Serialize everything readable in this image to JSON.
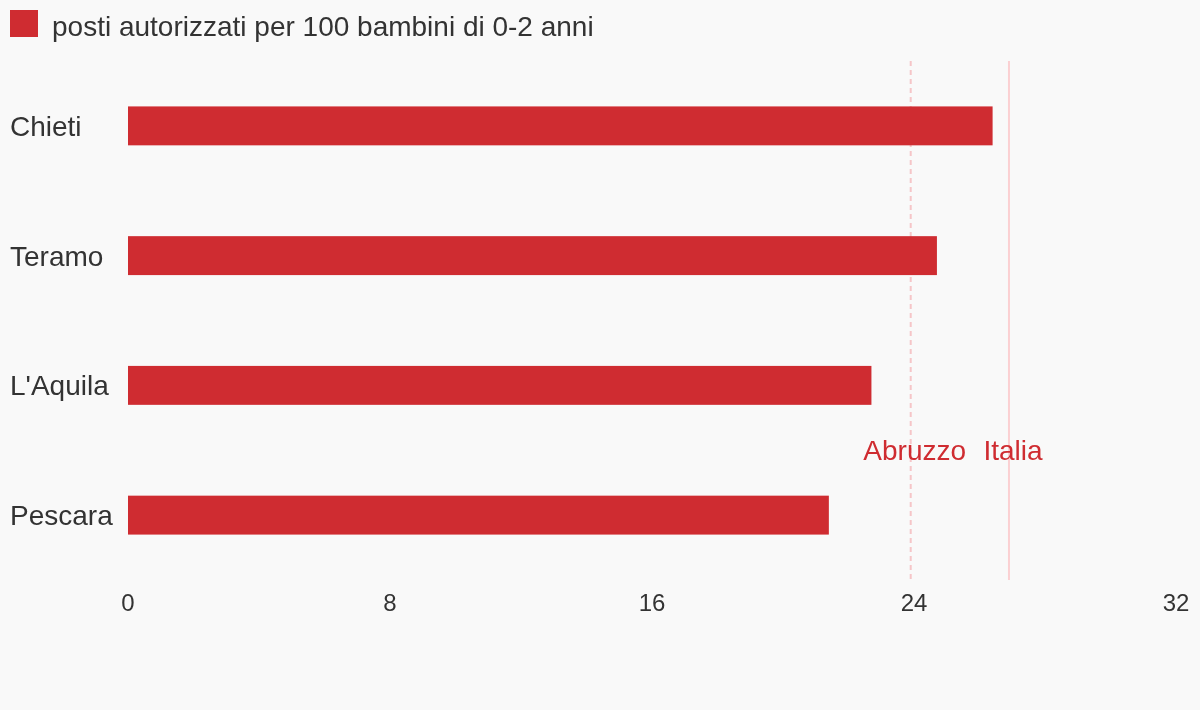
{
  "chart_data": {
    "type": "bar",
    "orientation": "horizontal",
    "categories": [
      "Chieti",
      "Teramo",
      "L'Aquila",
      "Pescara"
    ],
    "series": [
      {
        "name": "posti autorizzati per 100 bambini di 0-2 anni",
        "color": "#cf2c31",
        "values": [
          26.4,
          24.7,
          22.7,
          21.4
        ]
      }
    ],
    "xlim": [
      0,
      32
    ],
    "xticks": [
      0,
      8,
      16,
      24,
      32
    ],
    "grid": false,
    "legend": "top left",
    "ref_lines": [
      {
        "axis": "x",
        "value": 23.9,
        "label": "Abruzzo",
        "color": "#f5c6c8",
        "line_style": "dashed"
      },
      {
        "axis": "x",
        "value": 26.9,
        "label": "Italia",
        "color": "#fbd0d2",
        "line_style": "solid"
      }
    ]
  }
}
